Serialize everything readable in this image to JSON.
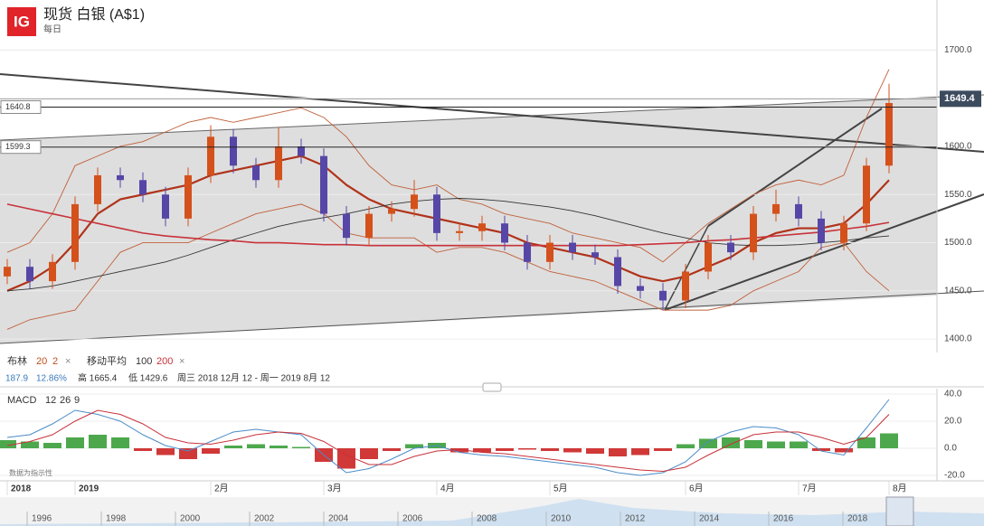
{
  "header": {
    "logo": "IG",
    "title": "现货 白银 (A$1)",
    "interval": "每日"
  },
  "indicators": {
    "bollinger": {
      "name": "布林",
      "period": "20",
      "dev": "2",
      "close": "×"
    },
    "ma": {
      "name": "移动平均",
      "fast": "100",
      "slow": "200",
      "close": "×"
    }
  },
  "stats": {
    "change": "187.9",
    "change_pct": "12.86%",
    "high": "高 1665.4",
    "low": "低 1429.6",
    "range": "周三 2018 12月 12 - 周一 2019 8月 12"
  },
  "note": "数据为指示性",
  "navigator": {
    "years": [
      "1996",
      "1998",
      "2000",
      "2002",
      "2004",
      "2006",
      "2008",
      "2010",
      "2012",
      "2014",
      "2016",
      "2018"
    ]
  },
  "chart_data": [
    {
      "type": "candlestick",
      "categories": [
        "2018",
        null,
        null,
        "2019",
        null,
        null,
        null,
        null,
        null,
        "2月",
        null,
        null,
        null,
        null,
        "3月",
        null,
        null,
        null,
        null,
        "4月",
        null,
        null,
        null,
        null,
        "5月",
        null,
        null,
        null,
        null,
        null,
        "6月",
        null,
        null,
        null,
        null,
        "7月",
        null,
        null,
        null,
        "8月"
      ],
      "open": [
        1465,
        1475,
        1460,
        1480,
        1540,
        1570,
        1565,
        1550,
        1525,
        1570,
        1610,
        1580,
        1565,
        1600,
        1590,
        1530,
        1505,
        1530,
        1535,
        1550,
        1510,
        1512,
        1520,
        1500,
        1480,
        1500,
        1490,
        1485,
        1455,
        1450,
        1440,
        1470,
        1500,
        1490,
        1530,
        1540,
        1525,
        1500,
        1520,
        1580
      ],
      "high": [
        1483,
        1483,
        1488,
        1548,
        1578,
        1578,
        1573,
        1558,
        1578,
        1622,
        1618,
        1588,
        1620,
        1608,
        1598,
        1538,
        1538,
        1543,
        1565,
        1558,
        1520,
        1528,
        1528,
        1508,
        1508,
        1508,
        1498,
        1493,
        1463,
        1458,
        1478,
        1508,
        1508,
        1538,
        1555,
        1548,
        1533,
        1528,
        1588,
        1665
      ],
      "low": [
        1457,
        1452,
        1452,
        1472,
        1532,
        1557,
        1542,
        1517,
        1517,
        1562,
        1572,
        1557,
        1557,
        1582,
        1522,
        1497,
        1497,
        1522,
        1527,
        1502,
        1502,
        1502,
        1492,
        1472,
        1472,
        1482,
        1477,
        1447,
        1442,
        1430,
        1432,
        1462,
        1482,
        1482,
        1522,
        1517,
        1492,
        1492,
        1512,
        1572
      ],
      "close": [
        1475,
        1460,
        1480,
        1540,
        1570,
        1565,
        1550,
        1525,
        1570,
        1610,
        1580,
        1565,
        1600,
        1590,
        1530,
        1505,
        1530,
        1535,
        1550,
        1510,
        1512,
        1520,
        1500,
        1480,
        1500,
        1490,
        1485,
        1455,
        1450,
        1440,
        1470,
        1500,
        1490,
        1530,
        1540,
        1525,
        1500,
        1520,
        1580,
        1645
      ],
      "up_color": "#d4511c",
      "down_color": "#5646a6",
      "series": [
        {
          "name": "BB mid",
          "color": "#b0331a",
          "width": 2.2,
          "values": [
            1450,
            1460,
            1475,
            1500,
            1530,
            1545,
            1550,
            1555,
            1560,
            1570,
            1575,
            1580,
            1585,
            1590,
            1580,
            1560,
            1545,
            1535,
            1530,
            1525,
            1520,
            1515,
            1510,
            1500,
            1495,
            1490,
            1485,
            1475,
            1465,
            1460,
            1465,
            1475,
            1485,
            1500,
            1510,
            1515,
            1515,
            1520,
            1540,
            1565
          ]
        },
        {
          "name": "BB upper",
          "color": "#c0603a",
          "width": 0.9,
          "values": [
            1490,
            1500,
            1530,
            1580,
            1590,
            1600,
            1605,
            1615,
            1625,
            1630,
            1625,
            1630,
            1635,
            1640,
            1630,
            1610,
            1580,
            1560,
            1555,
            1560,
            1545,
            1540,
            1530,
            1525,
            1520,
            1510,
            1505,
            1500,
            1495,
            1480,
            1500,
            1520,
            1535,
            1550,
            1560,
            1565,
            1560,
            1570,
            1630,
            1680
          ]
        },
        {
          "name": "BB lower",
          "color": "#c0603a",
          "width": 0.9,
          "values": [
            1410,
            1420,
            1425,
            1430,
            1460,
            1490,
            1500,
            1500,
            1500,
            1510,
            1520,
            1530,
            1535,
            1540,
            1530,
            1510,
            1505,
            1505,
            1505,
            1490,
            1495,
            1495,
            1490,
            1480,
            1470,
            1465,
            1460,
            1450,
            1440,
            1430,
            1430,
            1430,
            1435,
            1450,
            1460,
            1470,
            1495,
            1500,
            1470,
            1450
          ]
        },
        {
          "name": "MA 100",
          "color": "#333333",
          "width": 0.9,
          "values": [
            1450,
            1452,
            1455,
            1460,
            1465,
            1470,
            1475,
            1480,
            1487,
            1495,
            1503,
            1510,
            1517,
            1522,
            1526,
            1530,
            1535,
            1540,
            1543,
            1545,
            1546,
            1545,
            1543,
            1540,
            1537,
            1533,
            1528,
            1522,
            1516,
            1510,
            1505,
            1500,
            1498,
            1497,
            1497,
            1498,
            1500,
            1502,
            1505,
            1507
          ]
        },
        {
          "name": "MA 200",
          "color": "#c8323a",
          "width": 1.6,
          "values": [
            1540,
            1535,
            1530,
            1525,
            1520,
            1515,
            1510,
            1507,
            1505,
            1503,
            1502,
            1500,
            1500,
            1499,
            1498,
            1498,
            1497,
            1497,
            1497,
            1497,
            1497,
            1497,
            1497,
            1497,
            1497,
            1497,
            1497,
            1497,
            1498,
            1499,
            1500,
            1502,
            1503,
            1505,
            1507,
            1509,
            1511,
            1514,
            1517,
            1521
          ]
        }
      ],
      "price_lines": [
        1640.8,
        1599.3
      ],
      "last": 1649.4,
      "ylim": [
        1386,
        1752
      ],
      "yticks": [
        {
          "value": 1400,
          "label": "1400.0"
        },
        {
          "value": 1450,
          "label": "1450.0"
        },
        {
          "value": 1500,
          "label": "1500.0"
        },
        {
          "value": 1550,
          "label": "1550.0"
        },
        {
          "value": 1600,
          "label": "1600.0"
        },
        {
          "value": 1650,
          "label": "1650.0"
        },
        {
          "value": 1700,
          "label": "1700.0"
        }
      ]
    },
    {
      "type": "macd",
      "title": "MACD",
      "params": [
        "12",
        "26",
        "9"
      ],
      "histogram": [
        6,
        5,
        4,
        8,
        10,
        8,
        -2,
        -5,
        -8,
        -4,
        2,
        3,
        2,
        1,
        -10,
        -15,
        -8,
        -2,
        3,
        4,
        -3,
        -3,
        -2,
        -1,
        -2,
        -3,
        -4,
        -6,
        -5,
        -2,
        3,
        7,
        8,
        6,
        5,
        5,
        -2,
        -3,
        8,
        11
      ],
      "pos_color": "#3a9f3a",
      "neg_color": "#cc2222",
      "series": [
        {
          "name": "MACD",
          "color": "#4a8cc8",
          "values": [
            8,
            10,
            18,
            28,
            25,
            20,
            10,
            2,
            -2,
            5,
            12,
            14,
            12,
            10,
            -5,
            -18,
            -15,
            -8,
            0,
            2,
            -3,
            -5,
            -6,
            -8,
            -10,
            -12,
            -14,
            -18,
            -20,
            -18,
            -10,
            5,
            12,
            16,
            15,
            10,
            -2,
            -5,
            15,
            36
          ]
        },
        {
          "name": "Signal",
          "color": "#c8323a",
          "values": [
            2,
            5,
            10,
            20,
            28,
            25,
            18,
            8,
            4,
            3,
            6,
            10,
            12,
            11,
            5,
            -5,
            -12,
            -12,
            -6,
            -2,
            -1,
            -3,
            -4,
            -6,
            -8,
            -10,
            -12,
            -14,
            -16,
            -17,
            -14,
            -5,
            3,
            10,
            12,
            12,
            8,
            3,
            8,
            25
          ]
        }
      ],
      "ylim": [
        -24,
        44
      ],
      "yticks": [
        {
          "value": -20,
          "label": "-20.0"
        },
        {
          "value": 0,
          "label": "0.0"
        },
        {
          "value": 20,
          "label": "20.0"
        },
        {
          "value": 40,
          "label": "40.0"
        }
      ]
    }
  ]
}
